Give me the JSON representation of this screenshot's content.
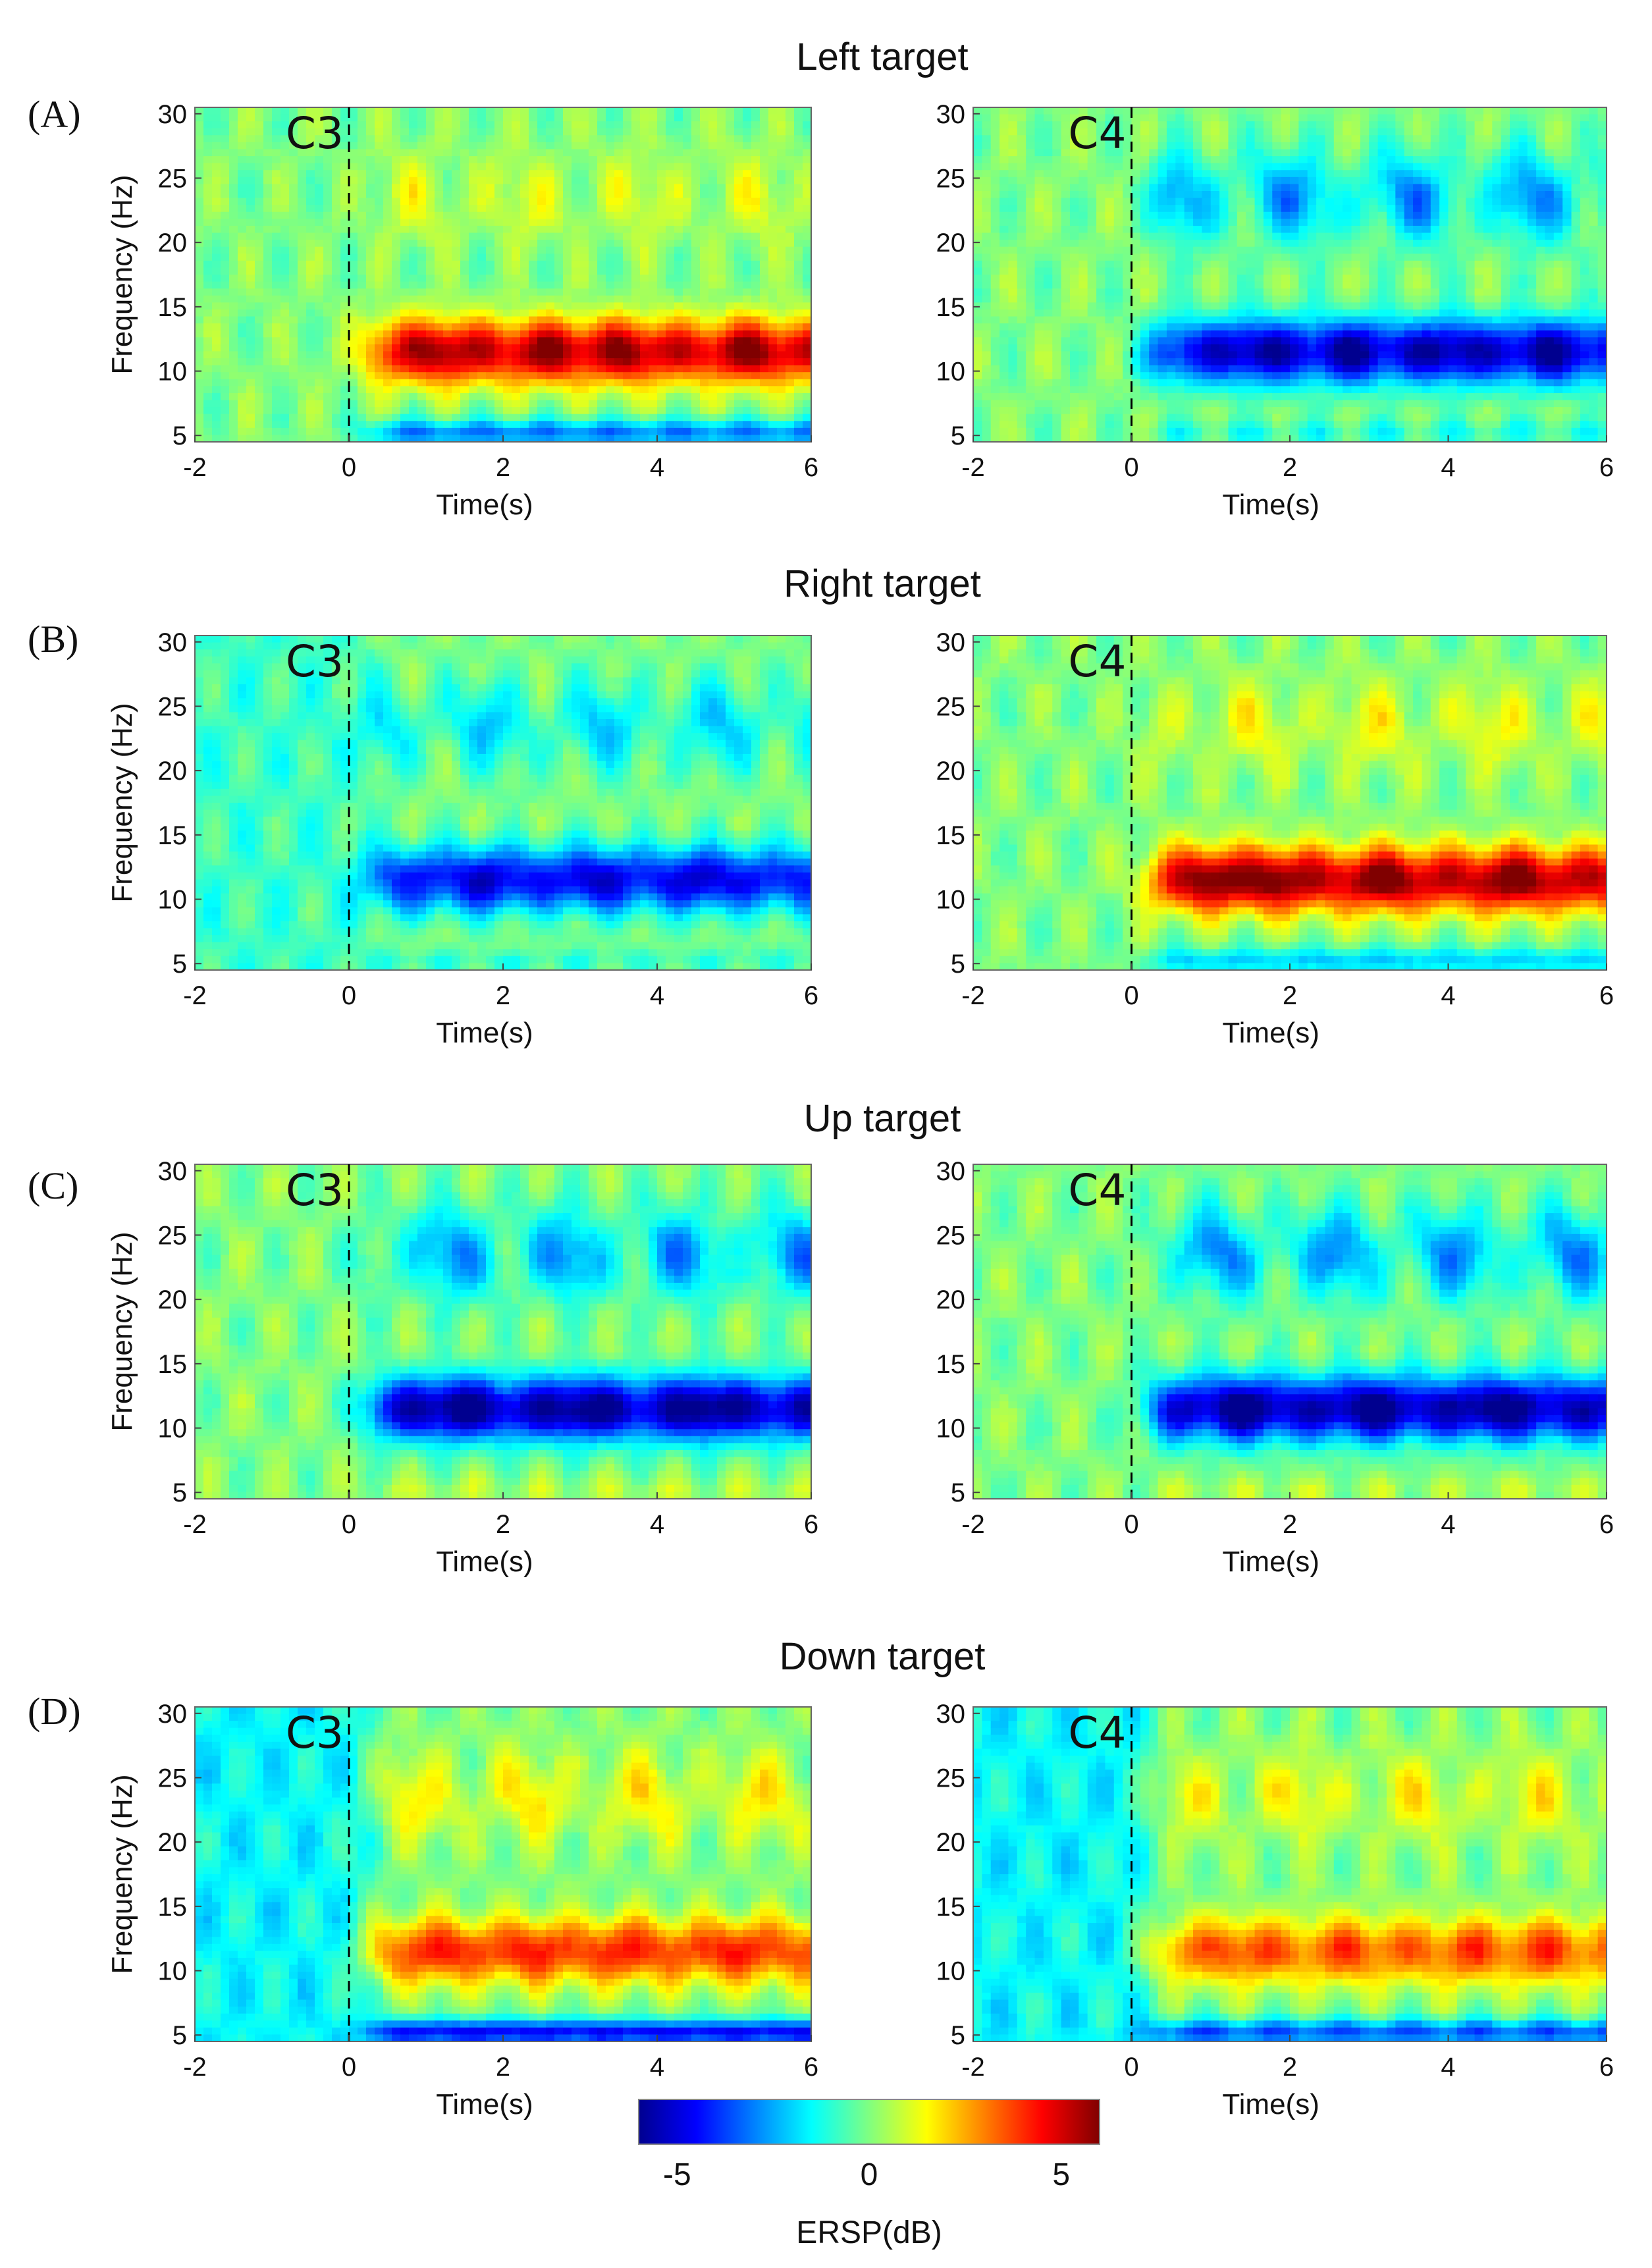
{
  "figure": {
    "colorbar": {
      "label": "ERSP(dB)",
      "range": [
        -6,
        6
      ],
      "ticks": [
        -5,
        0,
        5
      ],
      "colormap": [
        "#00008f",
        "#0000ff",
        "#0080ff",
        "#00ffff",
        "#80ff80",
        "#ffff00",
        "#ff8000",
        "#ff0000",
        "#800000"
      ]
    },
    "axes_common": {
      "xlabel": "Time(s)",
      "ylabel": "Frequency (Hz)",
      "xlim": [
        -2,
        6
      ],
      "ylim": [
        4.5,
        30.5
      ],
      "xticks": [
        -2,
        0,
        2,
        4,
        6
      ],
      "yticks": [
        5,
        10,
        15,
        20,
        25,
        30
      ],
      "onset_time": 0
    },
    "rows": [
      {
        "letter": "(A)",
        "title": "Left target"
      },
      {
        "letter": "(B)",
        "title": "Right target"
      },
      {
        "letter": "(C)",
        "title": "Up target"
      },
      {
        "letter": "(D)",
        "title": "Down target"
      }
    ]
  },
  "chart_data": [
    {
      "type": "heatmap",
      "row": "Left target",
      "channel": "C3",
      "xlabel": "Time(s)",
      "ylabel": "Frequency (Hz)",
      "xlim": [
        -2,
        6
      ],
      "ylim": [
        4.5,
        30.5
      ],
      "features": {
        "baseline": 0,
        "alpha_band_dB": 5.5,
        "alpha_peaks_s": [
          1.2,
          2.6,
          3.6,
          5.2
        ],
        "beta_dB": 1.0,
        "low_freq_dB": -3.0
      }
    },
    {
      "type": "heatmap",
      "row": "Left target",
      "channel": "C4",
      "xlabel": "Time(s)",
      "ylabel": "Frequency (Hz)",
      "xlim": [
        -2,
        6
      ],
      "ylim": [
        4.5,
        30.5
      ],
      "features": {
        "baseline": 0,
        "alpha_band_dB": -5.5,
        "alpha_peaks_s": [
          1.6,
          2.8,
          4.0,
          5.2
        ],
        "beta_dB": -2.5,
        "low_freq_dB": -1.0
      }
    },
    {
      "type": "heatmap",
      "row": "Right target",
      "channel": "C3",
      "xlabel": "Time(s)",
      "ylabel": "Frequency (Hz)",
      "xlim": [
        -2,
        6
      ],
      "ylim": [
        4.5,
        30.5
      ],
      "features": {
        "baseline": -0.8,
        "alpha_band_dB": -4.8,
        "alpha_peaks_s": [
          1.8,
          3.2,
          4.6
        ],
        "beta_dB": -1.8,
        "low_freq_dB": -0.8
      }
    },
    {
      "type": "heatmap",
      "row": "Right target",
      "channel": "C4",
      "xlabel": "Time(s)",
      "ylabel": "Frequency (Hz)",
      "xlim": [
        -2,
        6
      ],
      "ylim": [
        4.5,
        30.5
      ],
      "features": {
        "baseline": 0,
        "alpha_band_dB": 5.8,
        "alpha_peaks_s": [
          1.0,
          1.8,
          3.2,
          4.8
        ],
        "beta_dB": 1.2,
        "low_freq_dB": -2.0
      }
    },
    {
      "type": "heatmap",
      "row": "Up target",
      "channel": "C3",
      "xlabel": "Time(s)",
      "ylabel": "Frequency (Hz)",
      "xlim": [
        -2,
        6
      ],
      "ylim": [
        4.5,
        30.5
      ],
      "features": {
        "baseline": 0,
        "alpha_band_dB": -6.0,
        "alpha_peaks_s": [
          1.4,
          3.0,
          4.6
        ],
        "beta_dB": -2.5,
        "low_freq_dB": 0.5
      }
    },
    {
      "type": "heatmap",
      "row": "Up target",
      "channel": "C4",
      "xlabel": "Time(s)",
      "ylabel": "Frequency (Hz)",
      "xlim": [
        -2,
        6
      ],
      "ylim": [
        4.5,
        30.5
      ],
      "features": {
        "baseline": 0,
        "alpha_band_dB": -6.0,
        "alpha_peaks_s": [
          1.4,
          3.0,
          4.6
        ],
        "beta_dB": -2.5,
        "low_freq_dB": 0.5
      }
    },
    {
      "type": "heatmap",
      "row": "Down target",
      "channel": "C3",
      "xlabel": "Time(s)",
      "ylabel": "Frequency (Hz)",
      "xlim": [
        -2,
        6
      ],
      "ylim": [
        4.5,
        30.5
      ],
      "features": {
        "baseline": -1.5,
        "alpha_band_dB": 4.0,
        "alpha_peaks_s": [
          1.2,
          2.4,
          3.6,
          5.0
        ],
        "beta_dB": 1.5,
        "low_freq_dB": -4.5
      }
    },
    {
      "type": "heatmap",
      "row": "Down target",
      "channel": "C4",
      "xlabel": "Time(s)",
      "ylabel": "Frequency (Hz)",
      "xlim": [
        -2,
        6
      ],
      "ylim": [
        4.5,
        30.5
      ],
      "features": {
        "baseline": -1.5,
        "alpha_band_dB": 3.5,
        "alpha_peaks_s": [
          1.4,
          2.8,
          4.2,
          5.2
        ],
        "beta_dB": 1.3,
        "low_freq_dB": -3.5
      }
    }
  ]
}
